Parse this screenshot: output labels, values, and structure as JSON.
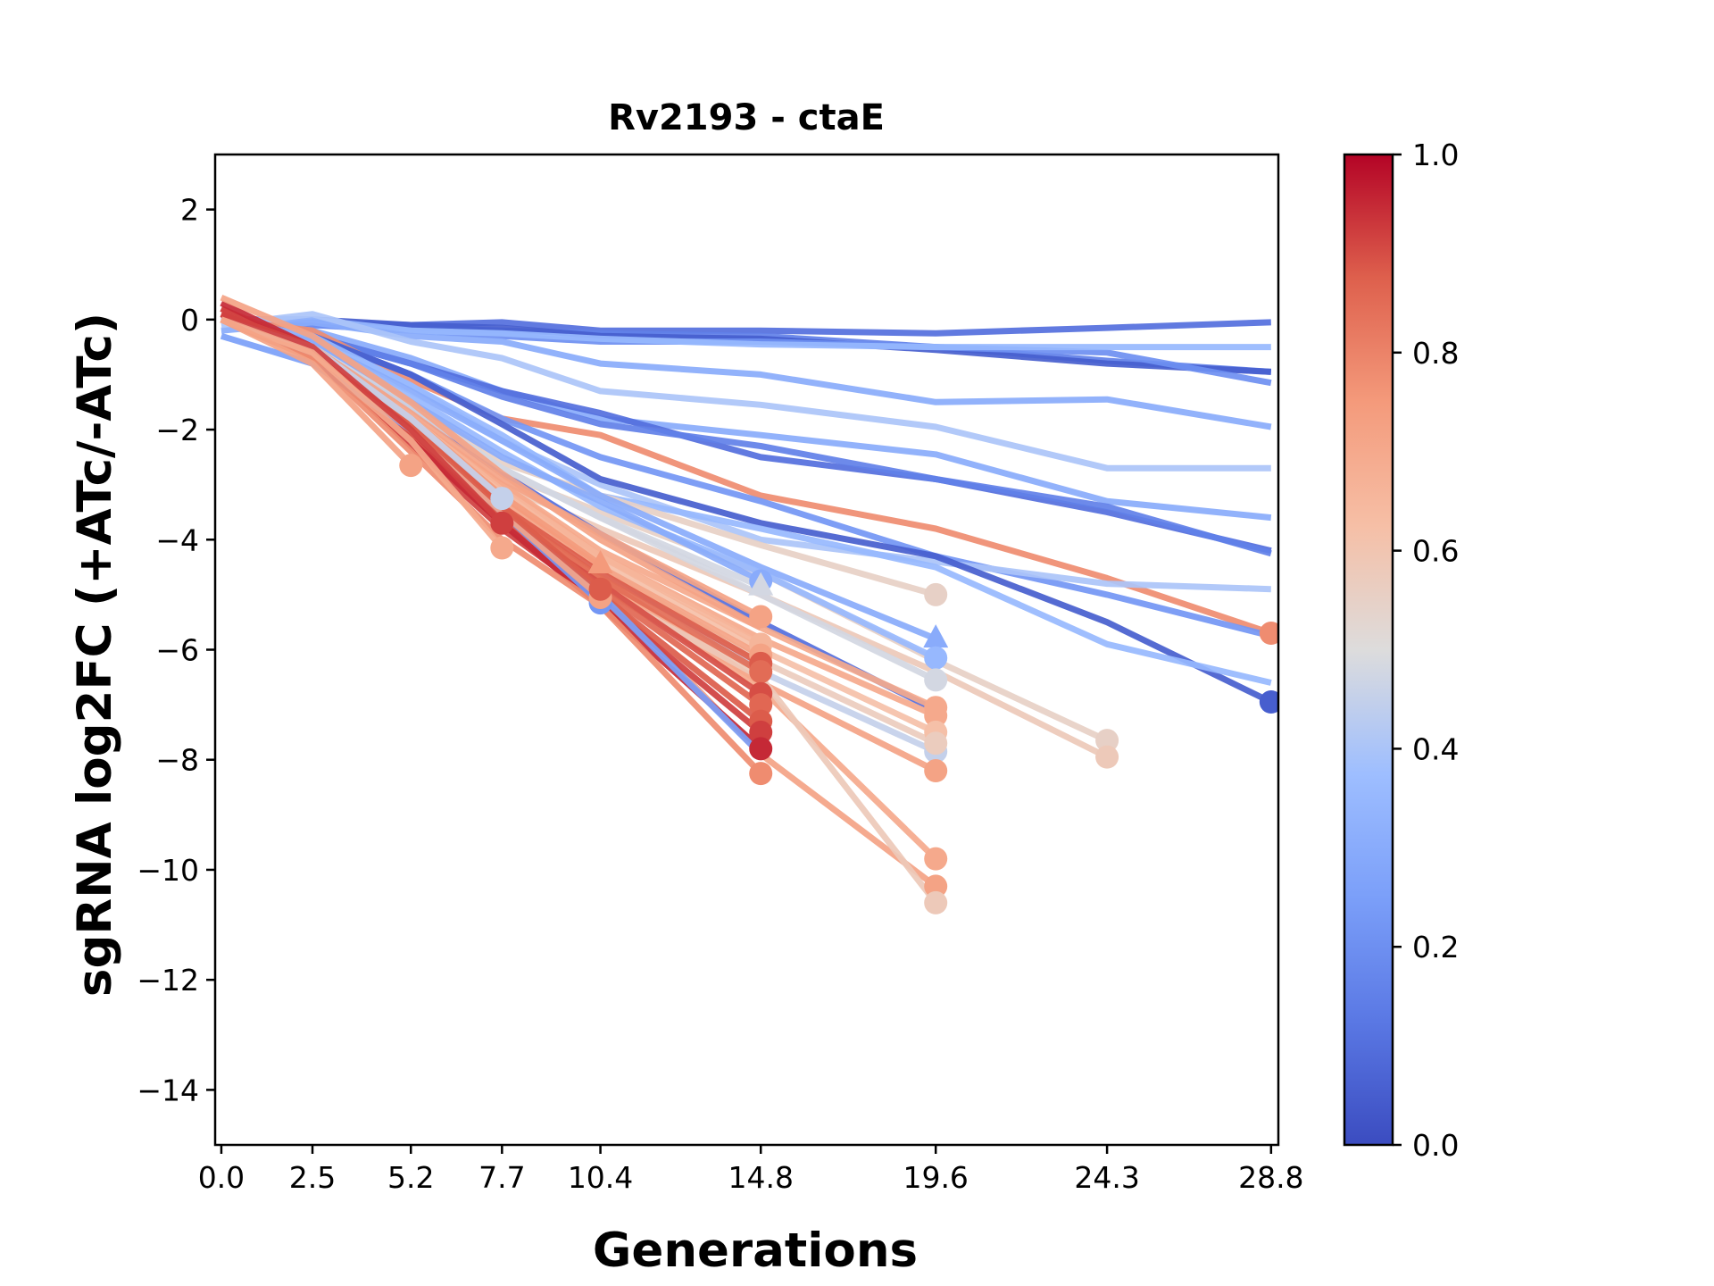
{
  "chart_data": {
    "type": "line",
    "title": "Rv2193 - ctaE",
    "xlabel": "Generations",
    "ylabel": "sgRNA log2FC (+ATc/-ATc)",
    "x_ticks": [
      0.0,
      2.5,
      5.2,
      7.7,
      10.4,
      14.8,
      19.6,
      24.3,
      28.8
    ],
    "x_tick_labels": [
      "0.0",
      "2.5",
      "5.2",
      "7.7",
      "10.4",
      "14.8",
      "19.6",
      "24.3",
      "28.8"
    ],
    "xlim": [
      -0.17,
      29.0
    ],
    "y_ticks": [
      2,
      0,
      -2,
      -4,
      -6,
      -8,
      -10,
      -12,
      -14
    ],
    "y_tick_labels": [
      "2",
      "−0",
      "−2",
      "−4",
      "−6",
      "−8",
      "−10",
      "−12",
      "−14"
    ],
    "ylim": [
      -15,
      3
    ],
    "grid": false,
    "colormap": "coolwarm",
    "colorbar": {
      "range": [
        0.0,
        1.0
      ],
      "ticks": [
        0.0,
        0.2,
        0.4,
        0.6,
        0.8,
        1.0
      ],
      "tick_labels": [
        "0.0",
        "0.2",
        "0.4",
        "0.6",
        "0.8",
        "1.0"
      ],
      "placement": "right"
    },
    "series": [
      {
        "color_value": 0.1,
        "x": [
          0,
          2.5,
          5.2,
          7.7,
          10.4,
          14.8,
          19.6,
          24.3,
          28.8
        ],
        "y": [
          0,
          -0.05,
          -0.1,
          -0.05,
          -0.2,
          -0.2,
          -0.25,
          -0.15,
          -0.05
        ],
        "end_marker": "none"
      },
      {
        "color_value": 0.15,
        "x": [
          0,
          2.5,
          5.2,
          7.7,
          10.4,
          14.8,
          19.6,
          24.3,
          28.8
        ],
        "y": [
          0,
          -0.1,
          -0.15,
          -0.2,
          -0.25,
          -0.3,
          -0.5,
          -0.75,
          -0.95
        ],
        "end_marker": "none"
      },
      {
        "color_value": 0.05,
        "x": [
          0,
          2.5,
          5.2,
          7.7,
          10.4,
          14.8,
          19.6,
          24.3,
          28.8
        ],
        "y": [
          0,
          0,
          -0.1,
          -0.15,
          -0.3,
          -0.35,
          -0.55,
          -0.8,
          -0.95
        ],
        "end_marker": "none"
      },
      {
        "color_value": 0.2,
        "x": [
          0,
          2.5,
          5.2,
          7.7,
          10.4,
          14.8,
          19.6,
          24.3,
          28.8
        ],
        "y": [
          0,
          -0.1,
          -0.2,
          -0.3,
          -0.4,
          -0.4,
          -0.5,
          -0.6,
          -1.15
        ],
        "end_marker": "none"
      },
      {
        "color_value": 0.35,
        "x": [
          0,
          2.5,
          5.2,
          7.7,
          10.4,
          14.8,
          19.6,
          24.3,
          28.8
        ],
        "y": [
          0,
          0,
          -0.2,
          -0.25,
          -0.35,
          -0.45,
          -0.5,
          -0.5,
          -0.5
        ],
        "end_marker": "none"
      },
      {
        "color_value": 0.3,
        "x": [
          0,
          2.5,
          5.2,
          7.7,
          10.4,
          14.8,
          19.6,
          24.3,
          28.8
        ],
        "y": [
          -0.2,
          -0.05,
          -0.3,
          -0.4,
          -0.8,
          -1.0,
          -1.5,
          -1.45,
          -1.95
        ],
        "end_marker": "none"
      },
      {
        "color_value": 0.4,
        "x": [
          0,
          2.5,
          5.2,
          7.7,
          10.4,
          14.8,
          19.6,
          24.3,
          28.8
        ],
        "y": [
          -0.1,
          0.1,
          -0.4,
          -0.7,
          -1.3,
          -1.55,
          -1.95,
          -2.7,
          -2.7
        ],
        "end_marker": "none"
      },
      {
        "color_value": 0.3,
        "x": [
          0,
          2.5,
          5.2,
          7.7,
          10.4,
          14.8,
          19.6,
          24.3,
          28.8
        ],
        "y": [
          0,
          -0.2,
          -0.7,
          -1.3,
          -1.8,
          -2.1,
          -2.45,
          -3.3,
          -3.6
        ],
        "end_marker": "none"
      },
      {
        "color_value": 0.1,
        "x": [
          0,
          2.5,
          5.2,
          7.7,
          10.4,
          14.8,
          19.6,
          24.3,
          28.8
        ],
        "y": [
          0,
          -0.3,
          -0.8,
          -1.3,
          -1.7,
          -2.5,
          -2.9,
          -3.5,
          -4.2
        ],
        "end_marker": "none"
      },
      {
        "color_value": 0.15,
        "x": [
          0,
          2.5,
          5.2,
          7.7,
          10.4,
          14.8,
          19.6,
          24.3,
          28.8
        ],
        "y": [
          0,
          -0.3,
          -0.8,
          -1.4,
          -1.9,
          -2.3,
          -2.9,
          -3.4,
          -4.25
        ],
        "end_marker": "none"
      },
      {
        "color_value": 0.78,
        "x": [
          0,
          2.5,
          5.2,
          7.7,
          10.4,
          14.8,
          19.6,
          24.3,
          28.8
        ],
        "y": [
          0,
          -0.2,
          -1.1,
          -1.8,
          -2.1,
          -3.2,
          -3.8,
          -4.7,
          -5.7
        ],
        "end_marker": "circle"
      },
      {
        "color_value": 0.22,
        "x": [
          0,
          2.5,
          5.2,
          7.7,
          10.4,
          14.8,
          19.6,
          24.3,
          28.8
        ],
        "y": [
          0,
          -0.3,
          -1.0,
          -1.8,
          -2.5,
          -3.3,
          -4.3,
          -5.0,
          -5.75
        ],
        "end_marker": "none"
      },
      {
        "color_value": 0.4,
        "x": [
          0,
          2.5,
          5.2,
          7.7,
          10.4,
          14.8,
          19.6,
          24.3,
          28.8
        ],
        "y": [
          0,
          -0.3,
          -1.2,
          -2.2,
          -3.0,
          -4.0,
          -4.4,
          -4.8,
          -4.9
        ],
        "end_marker": "none"
      },
      {
        "color_value": 0.05,
        "x": [
          0,
          2.5,
          5.2,
          7.7,
          10.4,
          14.8,
          19.6,
          24.3,
          28.8
        ],
        "y": [
          0,
          -0.3,
          -1.0,
          -1.9,
          -2.9,
          -3.7,
          -4.3,
          -5.5,
          -6.95
        ],
        "end_marker": "circle"
      },
      {
        "color_value": 0.35,
        "x": [
          0,
          2.5,
          5.2,
          7.7,
          10.4,
          14.8,
          19.6,
          24.3,
          28.8
        ],
        "y": [
          0,
          -0.3,
          -1.2,
          -2.1,
          -3.2,
          -3.8,
          -4.5,
          -5.9,
          -6.6
        ],
        "end_marker": "none"
      },
      {
        "color_value": 0.55,
        "x": [
          0,
          2.5,
          5.2,
          7.7,
          10.4,
          14.8,
          19.6,
          24.3
        ],
        "y": [
          0,
          -0.6,
          -1.6,
          -2.8,
          -3.5,
          -4.6,
          -6.2,
          -7.65
        ],
        "end_marker": "circle"
      },
      {
        "color_value": 0.58,
        "x": [
          0,
          2.5,
          5.2,
          7.7,
          10.4,
          14.8,
          19.6,
          24.3
        ],
        "y": [
          0,
          -0.7,
          -1.8,
          -3.0,
          -3.8,
          -5.0,
          -6.4,
          -7.95
        ],
        "end_marker": "circle"
      },
      {
        "color_value": 0.55,
        "x": [
          0,
          2.5,
          5.2,
          7.7,
          10.4,
          14.8,
          19.6
        ],
        "y": [
          0,
          -0.5,
          -1.5,
          -2.6,
          -3.2,
          -4.1,
          -5.0
        ],
        "end_marker": "circle"
      },
      {
        "color_value": 0.3,
        "x": [
          0,
          2.5,
          5.2,
          7.7,
          10.4,
          14.8,
          19.6
        ],
        "y": [
          0,
          -0.4,
          -1.3,
          -2.2,
          -3.2,
          -4.5,
          -5.8
        ],
        "end_marker": "triangle"
      },
      {
        "color_value": 0.35,
        "x": [
          0,
          2.5,
          5.2,
          7.7,
          10.4,
          14.8,
          19.6
        ],
        "y": [
          0,
          -0.4,
          -1.4,
          -2.4,
          -3.4,
          -4.6,
          -6.15
        ],
        "end_marker": "circle"
      },
      {
        "color_value": 0.48,
        "x": [
          0,
          2.5,
          5.2,
          7.7,
          10.4,
          14.8,
          19.6
        ],
        "y": [
          0,
          -0.5,
          -1.6,
          -2.7,
          -3.6,
          -5.0,
          -6.55
        ],
        "end_marker": "circle"
      },
      {
        "color_value": 0.1,
        "x": [
          0,
          2.5,
          5.2,
          7.7,
          10.4,
          14.8,
          19.6
        ],
        "y": [
          0,
          -0.5,
          -1.6,
          -2.8,
          -3.9,
          -5.5,
          -7.1
        ],
        "end_marker": "none"
      },
      {
        "color_value": 0.7,
        "x": [
          0,
          2.5,
          5.2,
          7.7,
          10.4,
          14.8,
          19.6
        ],
        "y": [
          0,
          -0.6,
          -1.8,
          -3.0,
          -4.2,
          -5.6,
          -7.05
        ],
        "end_marker": "circle"
      },
      {
        "color_value": 0.7,
        "x": [
          0,
          2.5,
          5.2,
          7.7,
          10.4,
          14.8,
          19.6
        ],
        "y": [
          0,
          -0.6,
          -1.8,
          -3.0,
          -4.3,
          -5.8,
          -7.2
        ],
        "end_marker": "circle"
      },
      {
        "color_value": 0.62,
        "x": [
          0,
          2.5,
          5.2,
          7.7,
          10.4,
          14.8,
          19.6
        ],
        "y": [
          0,
          -0.6,
          -1.9,
          -3.2,
          -4.4,
          -6.0,
          -7.5
        ],
        "end_marker": "circle"
      },
      {
        "color_value": 0.45,
        "x": [
          0,
          2.5,
          5.2,
          7.7,
          10.4,
          14.8,
          19.6
        ],
        "y": [
          0,
          -0.6,
          -1.9,
          -3.2,
          -4.5,
          -6.4,
          -7.85
        ],
        "end_marker": "circle"
      },
      {
        "color_value": 0.57,
        "x": [
          0,
          2.5,
          5.2,
          7.7,
          10.4,
          14.8,
          19.6
        ],
        "y": [
          0,
          -0.6,
          -1.9,
          -3.2,
          -4.5,
          -6.2,
          -7.7
        ],
        "end_marker": "circle"
      },
      {
        "color_value": 0.72,
        "x": [
          0,
          2.5,
          5.2,
          7.7,
          10.4,
          14.8,
          19.6
        ],
        "y": [
          0,
          -0.7,
          -2.0,
          -3.4,
          -4.7,
          -6.6,
          -8.2
        ],
        "end_marker": "circle"
      },
      {
        "color_value": 0.7,
        "x": [
          0,
          2.5,
          5.2,
          7.7,
          10.4,
          14.8,
          19.6
        ],
        "y": [
          0,
          -0.7,
          -2.0,
          -3.4,
          -4.8,
          -6.7,
          -9.8
        ],
        "end_marker": "circle"
      },
      {
        "color_value": 0.72,
        "x": [
          0,
          2.5,
          5.2,
          7.7,
          10.4,
          14.8,
          19.6
        ],
        "y": [
          0,
          -0.7,
          -2.1,
          -3.6,
          -4.9,
          -7.9,
          -10.3
        ],
        "end_marker": "circle"
      },
      {
        "color_value": 0.58,
        "x": [
          0,
          2.5,
          5.2,
          7.7,
          10.4,
          14.8,
          19.6
        ],
        "y": [
          0,
          -0.7,
          -2.0,
          -3.5,
          -4.9,
          -6.5,
          -10.6
        ],
        "end_marker": "circle"
      },
      {
        "color_value": 0.3,
        "x": [
          0,
          2.5,
          5.2,
          7.7,
          10.4,
          14.8
        ],
        "y": [
          0,
          -0.4,
          -1.5,
          -2.5,
          -3.3,
          -4.75
        ],
        "end_marker": "circle"
      },
      {
        "color_value": 0.48,
        "x": [
          0,
          2.5,
          5.2,
          7.7,
          10.4,
          14.8
        ],
        "y": [
          0,
          -0.5,
          -1.6,
          -2.7,
          -3.6,
          -4.85
        ],
        "end_marker": "triangle"
      },
      {
        "color_value": 0.72,
        "x": [
          0,
          2.5,
          5.2,
          7.7,
          10.4,
          14.8
        ],
        "y": [
          0,
          -0.5,
          -1.7,
          -2.9,
          -3.9,
          -5.4
        ],
        "end_marker": "circle"
      },
      {
        "color_value": 0.66,
        "x": [
          0,
          2.5,
          5.2,
          7.7,
          10.4,
          14.8
        ],
        "y": [
          0,
          -0.6,
          -1.8,
          -3.1,
          -4.3,
          -5.9
        ],
        "end_marker": "circle"
      },
      {
        "color_value": 0.72,
        "x": [
          0,
          2.5,
          5.2,
          7.7,
          10.4,
          14.8
        ],
        "y": [
          0,
          -0.6,
          -1.9,
          -3.3,
          -4.5,
          -6.1
        ],
        "end_marker": "circle"
      },
      {
        "color_value": 0.88,
        "x": [
          0,
          2.5,
          5.2,
          7.7,
          10.4,
          14.8
        ],
        "y": [
          0.1,
          -0.5,
          -1.9,
          -3.4,
          -4.6,
          -6.25
        ],
        "end_marker": "circle"
      },
      {
        "color_value": 0.85,
        "x": [
          0,
          2.5,
          5.2,
          7.7,
          10.4,
          14.8
        ],
        "y": [
          0.2,
          -0.5,
          -2.0,
          -3.5,
          -4.7,
          -6.4
        ],
        "end_marker": "circle"
      },
      {
        "color_value": 0.9,
        "x": [
          0,
          2.5,
          5.2,
          7.7,
          10.4,
          14.8
        ],
        "y": [
          0,
          -0.6,
          -2.1,
          -3.6,
          -4.8,
          -6.8
        ],
        "end_marker": "circle"
      },
      {
        "color_value": 0.86,
        "x": [
          0,
          2.5,
          5.2,
          7.7,
          10.4,
          14.8
        ],
        "y": [
          0.1,
          -0.6,
          -2.2,
          -3.6,
          -4.9,
          -7.0
        ],
        "end_marker": "circle"
      },
      {
        "color_value": 0.88,
        "x": [
          0,
          2.5,
          5.2,
          7.7,
          10.4,
          14.8
        ],
        "y": [
          0,
          -0.7,
          -2.2,
          -3.7,
          -5.0,
          -7.3
        ],
        "end_marker": "circle"
      },
      {
        "color_value": 0.92,
        "x": [
          0,
          2.5,
          5.2,
          7.7,
          10.4,
          14.8
        ],
        "y": [
          0.2,
          -0.6,
          -2.3,
          -3.8,
          -5.1,
          -7.5
        ],
        "end_marker": "circle"
      },
      {
        "color_value": 0.95,
        "x": [
          0,
          2.5,
          5.2,
          7.7,
          10.4,
          14.8
        ],
        "y": [
          0.3,
          -0.5,
          -2.2,
          -3.7,
          -5.2,
          -7.8
        ],
        "end_marker": "circle"
      },
      {
        "color_value": 0.25,
        "x": [
          0,
          2.5,
          5.2,
          7.7,
          10.4,
          14.8
        ],
        "y": [
          -0.3,
          -0.8,
          -2.0,
          -3.5,
          -5.0,
          -7.9
        ],
        "end_marker": "none"
      },
      {
        "color_value": 0.78,
        "x": [
          0,
          2.5,
          5.2,
          7.7,
          10.4,
          14.8
        ],
        "y": [
          0,
          -0.7,
          -2.4,
          -4.0,
          -5.2,
          -8.25
        ],
        "end_marker": "circle"
      },
      {
        "color_value": 0.72,
        "x": [
          0,
          2.5,
          5.2,
          7.7,
          10.4,
          14.8
        ],
        "y": [
          0.4,
          -0.3,
          -1.5,
          -2.8,
          -4.0,
          -5.6
        ],
        "end_marker": "none"
      },
      {
        "color_value": 0.22,
        "x": [
          0,
          2.5,
          5.2,
          7.7,
          10.4
        ],
        "y": [
          0,
          -0.6,
          -2.0,
          -3.5,
          -5.15
        ],
        "end_marker": "circle"
      },
      {
        "color_value": 0.72,
        "x": [
          0,
          2.5,
          5.2,
          7.7,
          10.4
        ],
        "y": [
          0,
          -0.6,
          -2.0,
          -3.5,
          -5.05
        ],
        "end_marker": "circle"
      },
      {
        "color_value": 0.88,
        "x": [
          0,
          2.5,
          5.2,
          7.7,
          10.4
        ],
        "y": [
          0.1,
          -0.5,
          -1.9,
          -3.4,
          -4.9
        ],
        "end_marker": "circle"
      },
      {
        "color_value": 0.75,
        "x": [
          0,
          2.5,
          5.2,
          7.7,
          10.4
        ],
        "y": [
          0,
          -0.5,
          -1.8,
          -3.2,
          -4.45
        ],
        "end_marker": "triangle"
      },
      {
        "color_value": 0.45,
        "x": [
          0,
          2.5,
          5.2,
          7.7
        ],
        "y": [
          0,
          -0.5,
          -1.8,
          -3.25
        ],
        "end_marker": "circle"
      },
      {
        "color_value": 0.92,
        "x": [
          0,
          2.5,
          5.2,
          7.7
        ],
        "y": [
          0.1,
          -0.5,
          -2.0,
          -3.7
        ],
        "end_marker": "circle"
      },
      {
        "color_value": 0.7,
        "x": [
          0,
          2.5,
          5.2,
          7.7
        ],
        "y": [
          0,
          -0.6,
          -2.2,
          -4.15
        ],
        "end_marker": "circle"
      },
      {
        "color_value": 0.72,
        "x": [
          0,
          2.5,
          5.2
        ],
        "y": [
          0,
          -0.8,
          -2.65
        ],
        "end_marker": "circle"
      }
    ]
  }
}
